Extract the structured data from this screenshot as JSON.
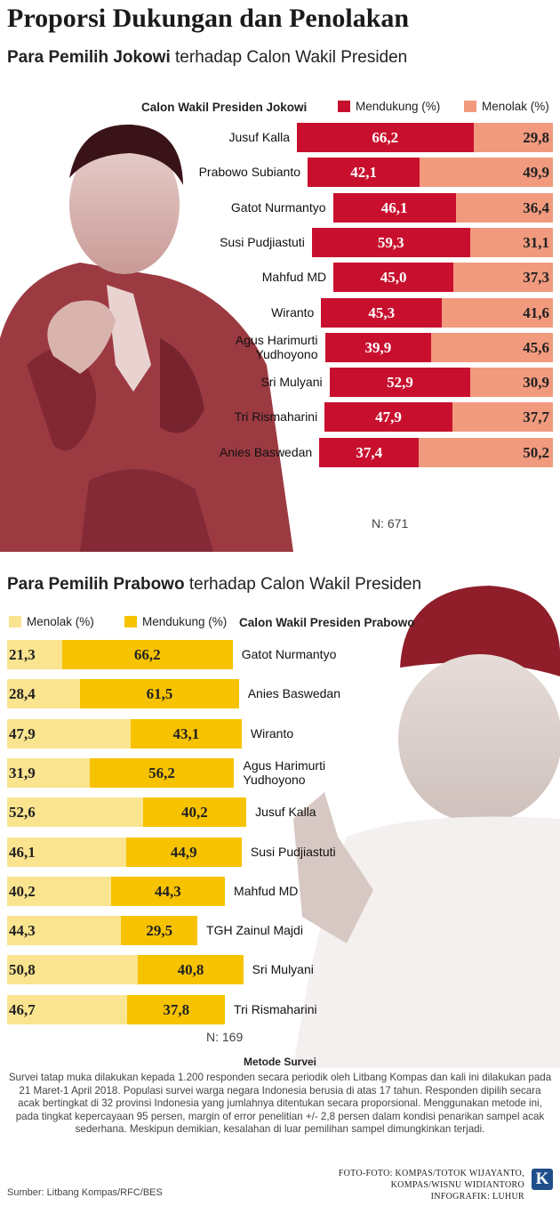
{
  "title": "Proporsi Dukungan dan Penolakan",
  "colors": {
    "jk_support": "#c8102e",
    "jk_reject": "#f19a7e",
    "pr_reject": "#fbe490",
    "pr_support": "#f7c300"
  },
  "chart_data": [
    {
      "type": "bar",
      "subtitle_bold": "Para Pemilih Jokowi",
      "subtitle_rest": " terhadap Calon Wakil Presiden",
      "legend_title": "Calon Wakil Presiden Jokowi",
      "series": [
        {
          "name": "Mendukung (%)",
          "values": [
            66.2,
            42.1,
            46.1,
            59.3,
            45.0,
            45.3,
            39.9,
            52.9,
            47.9,
            37.4
          ]
        },
        {
          "name": "Menolak (%)",
          "values": [
            29.8,
            49.9,
            36.4,
            31.1,
            37.3,
            41.6,
            45.6,
            30.9,
            37.7,
            50.2
          ]
        }
      ],
      "categories": [
        "Jusuf Kalla",
        "Prabowo Subianto",
        "Gatot Nurmantyo",
        "Susi Pudjiastuti",
        "Mahfud MD",
        "Wiranto",
        "Agus Harimurti\nYudhoyono",
        "Sri Mulyani",
        "Tri Rismaharini",
        "Anies Baswedan"
      ],
      "labels_support": [
        "66,2",
        "42,1",
        "46,1",
        "59,3",
        "45,0",
        "45,3",
        "39,9",
        "52,9",
        "47,9",
        "37,4"
      ],
      "labels_reject": [
        "29,8",
        "49,9",
        "36,4",
        "31,1",
        "37,3",
        "41,6",
        "45,6",
        "30,9",
        "37,7",
        "50,2"
      ],
      "n_label": "N: 671"
    },
    {
      "type": "bar",
      "subtitle_bold": "Para Pemilih Prabowo",
      "subtitle_rest": " terhadap Calon Wakil Presiden",
      "legend_title": "Calon Wakil Presiden Prabowo",
      "series": [
        {
          "name": "Menolak (%)",
          "values": [
            21.3,
            28.4,
            47.9,
            31.9,
            52.6,
            46.1,
            40.2,
            44.3,
            50.8,
            46.7
          ]
        },
        {
          "name": "Mendukung (%)",
          "values": [
            66.2,
            61.5,
            43.1,
            56.2,
            40.2,
            44.9,
            44.3,
            29.5,
            40.8,
            37.8
          ]
        }
      ],
      "categories": [
        "Gatot Nurmantyo",
        "Anies Baswedan",
        "Wiranto",
        "Agus Harimurti\nYudhoyono",
        "Jusuf Kalla",
        "Susi Pudjiastuti",
        "Mahfud MD",
        "TGH Zainul Majdi",
        "Sri Mulyani",
        "Tri Rismaharini"
      ],
      "labels_reject": [
        "21,3",
        "28,4",
        "47,9",
        "31,9",
        "52,6",
        "46,1",
        "40,2",
        "44,3",
        "50,8",
        "46,7"
      ],
      "labels_support": [
        "66,2",
        "61,5",
        "43,1",
        "56,2",
        "40,2",
        "44,9",
        "44,3",
        "29,5",
        "40,8",
        "37,8"
      ],
      "n_label": "N: 169"
    }
  ],
  "method": {
    "title": "Metode Survei",
    "text": "Survei tatap muka dilakukan kepada 1.200 responden secara periodik oleh Litbang Kompas dan kali ini dilakukan pada 21 Maret-1 April 2018. Populasi survei warga negara Indonesia berusia di atas 17 tahun. Responden dipilih secara acak bertingkat di 32 provinsi Indonesia yang jumlahnya ditentukan secara proporsional. Menggunakan metode ini, pada tingkat kepercayaan 95 persen, margin  of error penelitian +/- 2,8 persen dalam kondisi penarikan sampel acak sederhana. Meskipun demikian, kesalahan di luar pemilihan sampel dimungkinkan terjadi."
  },
  "source": "Sumber: Litbang Kompas/RFC/BES",
  "credits": [
    "FOTO-FOTO: KOMPAS/TOTOK WIJAYANTO,",
    "KOMPAS/WISNU WIDIANTORO",
    "INFOGRAFIK: LUHUR"
  ],
  "logo_letter": "K"
}
